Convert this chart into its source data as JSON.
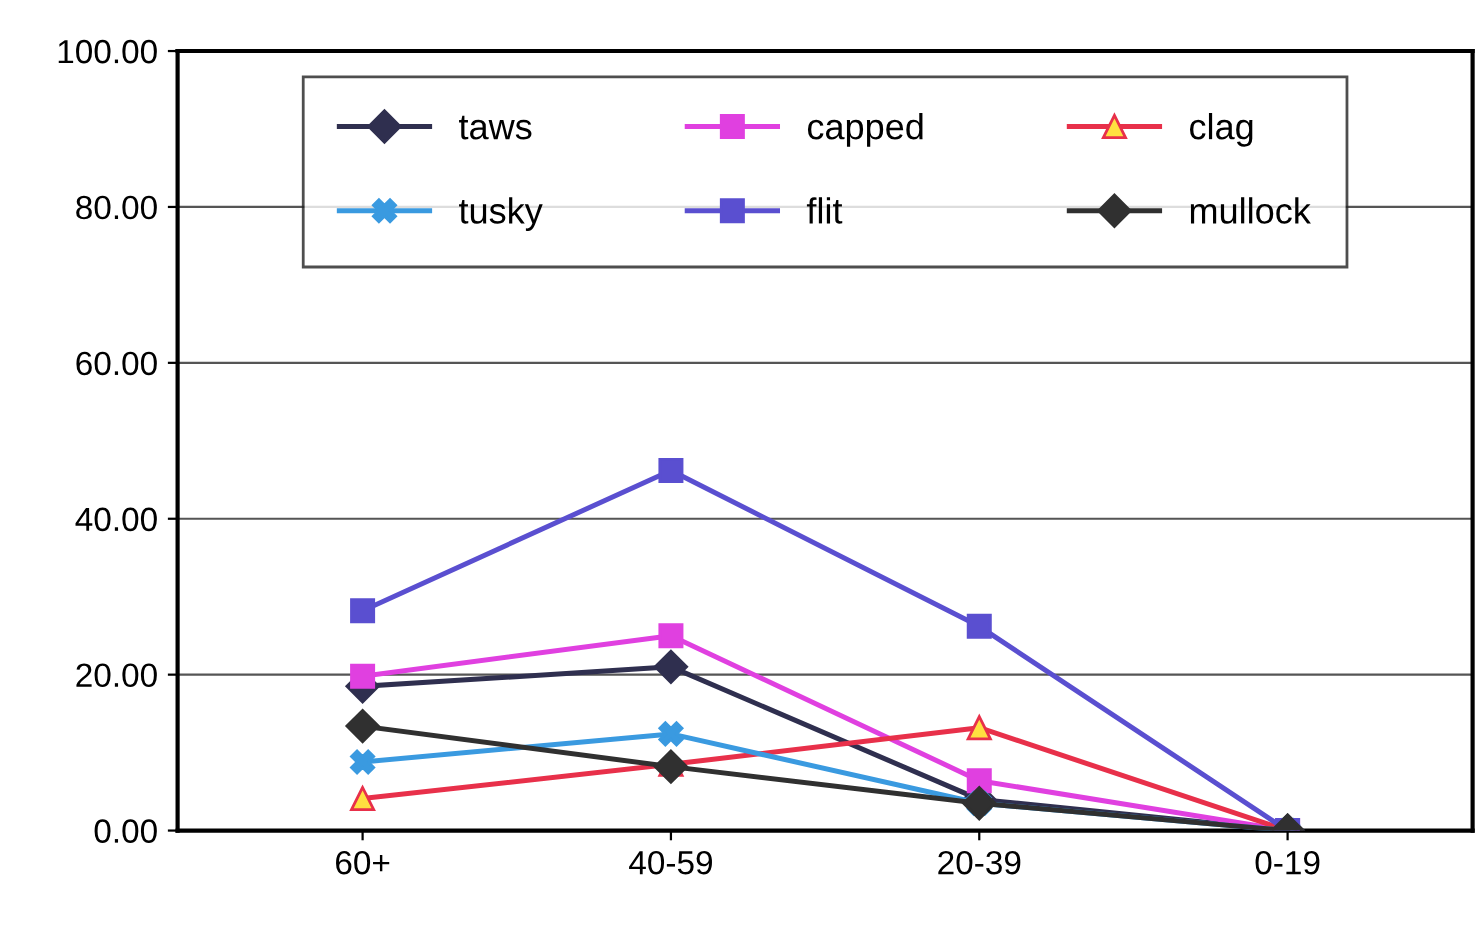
{
  "chart_data": {
    "type": "line",
    "categories": [
      "60+",
      "40-59",
      "20-39",
      "0-19"
    ],
    "series": [
      {
        "name": "taws",
        "color": "#2f2f4f",
        "marker": "diamond",
        "values": [
          18.5,
          21,
          4,
          0
        ]
      },
      {
        "name": "capped",
        "color": "#e040e0",
        "marker": "square",
        "values": [
          19.8,
          25,
          6.4,
          0
        ]
      },
      {
        "name": "clag",
        "color": "#e8304a",
        "marker": "triangle",
        "values": [
          4.1,
          8.5,
          13.2,
          0
        ]
      },
      {
        "name": "tusky",
        "color": "#3a9ae0",
        "marker": "cross",
        "values": [
          8.8,
          12.4,
          3.5,
          0
        ]
      },
      {
        "name": "flit",
        "color": "#5a4fd0",
        "marker": "square",
        "values": [
          28.2,
          46.2,
          26.2,
          0
        ]
      },
      {
        "name": "mullock",
        "color": "#303030",
        "marker": "diamond",
        "values": [
          13.4,
          8.2,
          3.5,
          0
        ]
      }
    ],
    "ylim": [
      0,
      100
    ],
    "yticks": [
      {
        "value": 0,
        "label": "0.00"
      },
      {
        "value": 20,
        "label": "20.00"
      },
      {
        "value": 40,
        "label": "40.00"
      },
      {
        "value": 60,
        "label": "60.00"
      },
      {
        "value": 80,
        "label": "80.00"
      },
      {
        "value": 100,
        "label": "100.00"
      }
    ],
    "grid": "y",
    "legend": "top"
  }
}
